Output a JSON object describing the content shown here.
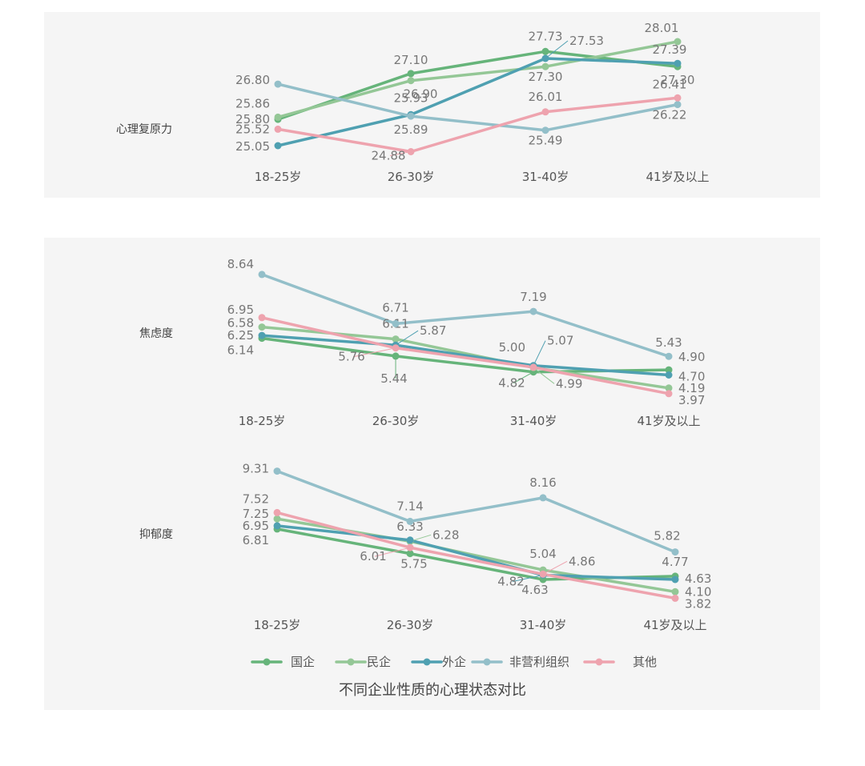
{
  "chart_title": "不同企业性质的心理状态对比",
  "colors": {
    "国企": "#66b47a",
    "民企": "#94c796",
    "外企": "#4fa0b1",
    "非营利组织": "#93bfc9",
    "其他": "#eea3ae"
  },
  "legend": [
    "国企",
    "民企",
    "外企",
    "非营利组织",
    "其他"
  ],
  "chart_data": [
    {
      "type": "line",
      "title": "心理复原力",
      "categories": [
        "18-25岁",
        "26-30岁",
        "31-40岁",
        "41岁及以上"
      ],
      "ylim": [
        24.8,
        28.1
      ],
      "series": [
        {
          "name": "国企",
          "values": [
            25.8,
            27.1,
            27.73,
            27.3
          ]
        },
        {
          "name": "民企",
          "values": [
            25.86,
            26.9,
            27.3,
            28.01
          ]
        },
        {
          "name": "外企",
          "values": [
            25.05,
            25.93,
            27.53,
            27.39
          ]
        },
        {
          "name": "非营利组织",
          "values": [
            26.8,
            25.89,
            25.49,
            26.22
          ]
        },
        {
          "name": "其他",
          "values": [
            25.52,
            24.88,
            26.01,
            26.41
          ]
        }
      ]
    },
    {
      "type": "line",
      "title": "焦虑度",
      "categories": [
        "18-25岁",
        "26-30岁",
        "31-40岁",
        "41岁及以上"
      ],
      "ylim": [
        3.9,
        8.7
      ],
      "series": [
        {
          "name": "国企",
          "values": [
            6.14,
            5.44,
            4.82,
            4.9
          ]
        },
        {
          "name": "民企",
          "values": [
            6.58,
            6.11,
            4.99,
            4.19
          ]
        },
        {
          "name": "外企",
          "values": [
            6.25,
            5.87,
            5.07,
            4.7
          ]
        },
        {
          "name": "非营利组织",
          "values": [
            8.64,
            6.71,
            7.19,
            5.43
          ]
        },
        {
          "name": "其他",
          "values": [
            6.95,
            5.76,
            5.0,
            3.97
          ]
        }
      ]
    },
    {
      "type": "line",
      "title": "抑郁度",
      "categories": [
        "18-25岁",
        "26-30岁",
        "31-40岁",
        "41岁及以上"
      ],
      "ylim": [
        3.8,
        9.4
      ],
      "series": [
        {
          "name": "国企",
          "values": [
            6.81,
            5.75,
            4.63,
            4.77
          ]
        },
        {
          "name": "民企",
          "values": [
            7.25,
            6.28,
            5.04,
            4.1
          ]
        },
        {
          "name": "外企",
          "values": [
            6.95,
            6.33,
            4.82,
            4.63
          ]
        },
        {
          "name": "非营利组织",
          "values": [
            9.31,
            7.14,
            8.16,
            5.82
          ]
        },
        {
          "name": "其他",
          "values": [
            7.52,
            6.01,
            4.86,
            3.82
          ]
        }
      ]
    }
  ]
}
